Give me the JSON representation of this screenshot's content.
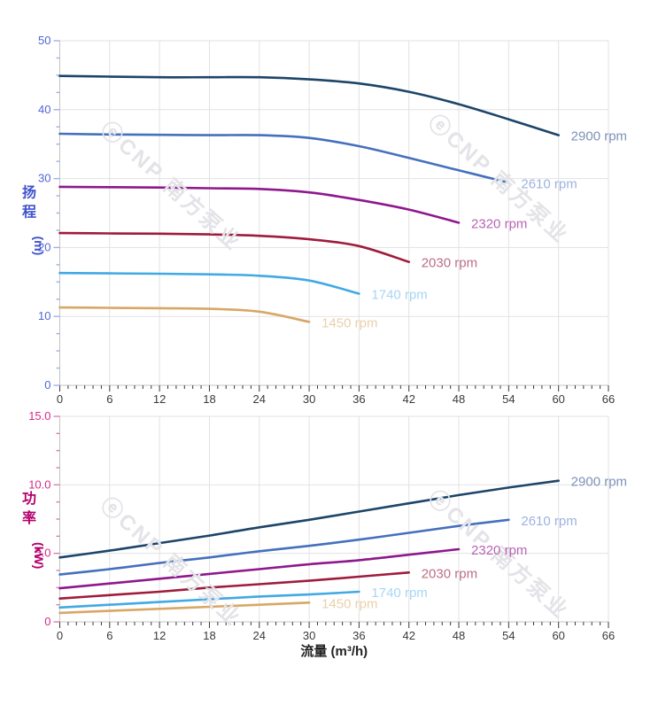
{
  "watermark": {
    "text": "ⓔCNP 南方泵业",
    "color": "#e3e3e8"
  },
  "x_axis": {
    "title": "流量 (m³/h)",
    "min": 0,
    "max": 66,
    "major_step": 6,
    "minor_step": 1,
    "tick_labels": [
      "0",
      "6",
      "12",
      "18",
      "24",
      "30",
      "36",
      "42",
      "48",
      "54",
      "60",
      "66"
    ],
    "tick_label_color": "#3a3a3a",
    "tick_color": "#3a3a3a",
    "title_color": "#222222",
    "axis_line_color": "#c4c4c4",
    "grid_color": "#e2e2e2"
  },
  "chart_data": [
    {
      "type": "line",
      "name": "head-curves",
      "y_axis": {
        "title_chars": [
          "扬",
          "程"
        ],
        "unit": "(m)",
        "min": 0,
        "max": 50,
        "major_step": 10,
        "minor_step": 2.5,
        "tick_labels": [
          "0",
          "10",
          "20",
          "30",
          "40",
          "50"
        ],
        "tick_label_color": "#5066d6",
        "tick_color": "#9fb0e8",
        "title_color": "#4053cc"
      },
      "series": [
        {
          "name": "2900 rpm",
          "color": "#1c4569",
          "label_color": "#7e92ba",
          "x": [
            0,
            6,
            12,
            18,
            24,
            30,
            36,
            42,
            48,
            54,
            60
          ],
          "y": [
            44.9,
            44.8,
            44.7,
            44.7,
            44.7,
            44.4,
            43.8,
            42.6,
            40.8,
            38.6,
            36.3
          ]
        },
        {
          "name": "2610 rpm",
          "color": "#4470bd",
          "label_color": "#9db2e0",
          "x": [
            0,
            6,
            12,
            18,
            24,
            30,
            36,
            42,
            48,
            54
          ],
          "y": [
            36.5,
            36.4,
            36.35,
            36.3,
            36.3,
            35.9,
            34.7,
            33.0,
            31.2,
            29.4
          ]
        },
        {
          "name": "2320 rpm",
          "color": "#8e188c",
          "label_color": "#b964b4",
          "x": [
            0,
            6,
            12,
            18,
            24,
            30,
            36,
            42,
            48
          ],
          "y": [
            28.8,
            28.75,
            28.7,
            28.6,
            28.5,
            28.0,
            26.9,
            25.5,
            23.6
          ]
        },
        {
          "name": "2030 rpm",
          "color": "#9e1c3c",
          "label_color": "#bb6e86",
          "x": [
            0,
            6,
            12,
            18,
            24,
            30,
            36,
            42
          ],
          "y": [
            22.1,
            22.05,
            22.0,
            21.9,
            21.7,
            21.2,
            20.2,
            17.9
          ]
        },
        {
          "name": "1740 rpm",
          "color": "#41a9e4",
          "label_color": "#a6d6f4",
          "x": [
            0,
            6,
            12,
            18,
            24,
            30,
            36
          ],
          "y": [
            16.3,
            16.25,
            16.2,
            16.1,
            15.9,
            15.2,
            13.3
          ]
        },
        {
          "name": "1450 rpm",
          "color": "#d8a765",
          "label_color": "#ead0ab",
          "x": [
            0,
            6,
            12,
            18,
            24,
            30
          ],
          "y": [
            11.3,
            11.25,
            11.2,
            11.1,
            10.7,
            9.2
          ]
        }
      ]
    },
    {
      "type": "line",
      "name": "power-curves",
      "y_axis": {
        "title_chars": [
          "功",
          "率"
        ],
        "unit": "(kW)",
        "min": 0,
        "max": 15,
        "major_step": 5,
        "minor_step": 1.25,
        "tick_labels": [
          "0",
          "5.0",
          "10.0",
          "15.0"
        ],
        "tick_label_color": "#d62a8a",
        "tick_color": "#d77fae",
        "title_color": "#b5006e"
      },
      "series": [
        {
          "name": "2900 rpm",
          "color": "#1c4569",
          "label_color": "#7e92ba",
          "x": [
            0,
            6,
            12,
            18,
            24,
            30,
            36,
            42,
            48,
            54,
            60
          ],
          "y": [
            4.7,
            5.2,
            5.75,
            6.3,
            6.9,
            7.45,
            8.05,
            8.65,
            9.25,
            9.8,
            10.3
          ]
        },
        {
          "name": "2610 rpm",
          "color": "#4470bd",
          "label_color": "#9db2e0",
          "x": [
            0,
            6,
            12,
            18,
            24,
            30,
            36,
            42,
            48,
            54
          ],
          "y": [
            3.45,
            3.85,
            4.3,
            4.7,
            5.15,
            5.55,
            6.0,
            6.5,
            7.0,
            7.45
          ]
        },
        {
          "name": "2320 rpm",
          "color": "#8e188c",
          "label_color": "#b964b4",
          "x": [
            0,
            6,
            12,
            18,
            24,
            30,
            36,
            42,
            48
          ],
          "y": [
            2.45,
            2.8,
            3.15,
            3.5,
            3.85,
            4.2,
            4.5,
            4.9,
            5.3
          ]
        },
        {
          "name": "2030 rpm",
          "color": "#9e1c3c",
          "label_color": "#bb6e86",
          "x": [
            0,
            6,
            12,
            18,
            24,
            30,
            36,
            42
          ],
          "y": [
            1.7,
            1.95,
            2.2,
            2.5,
            2.75,
            3.0,
            3.3,
            3.6
          ]
        },
        {
          "name": "1740 rpm",
          "color": "#41a9e4",
          "label_color": "#a6d6f4",
          "x": [
            0,
            6,
            12,
            18,
            24,
            30,
            36
          ],
          "y": [
            1.05,
            1.25,
            1.45,
            1.65,
            1.85,
            2.0,
            2.2
          ]
        },
        {
          "name": "1450 rpm",
          "color": "#d8a765",
          "label_color": "#ead0ab",
          "x": [
            0,
            6,
            12,
            18,
            24,
            30
          ],
          "y": [
            0.65,
            0.8,
            0.95,
            1.1,
            1.25,
            1.4
          ]
        }
      ]
    }
  ]
}
